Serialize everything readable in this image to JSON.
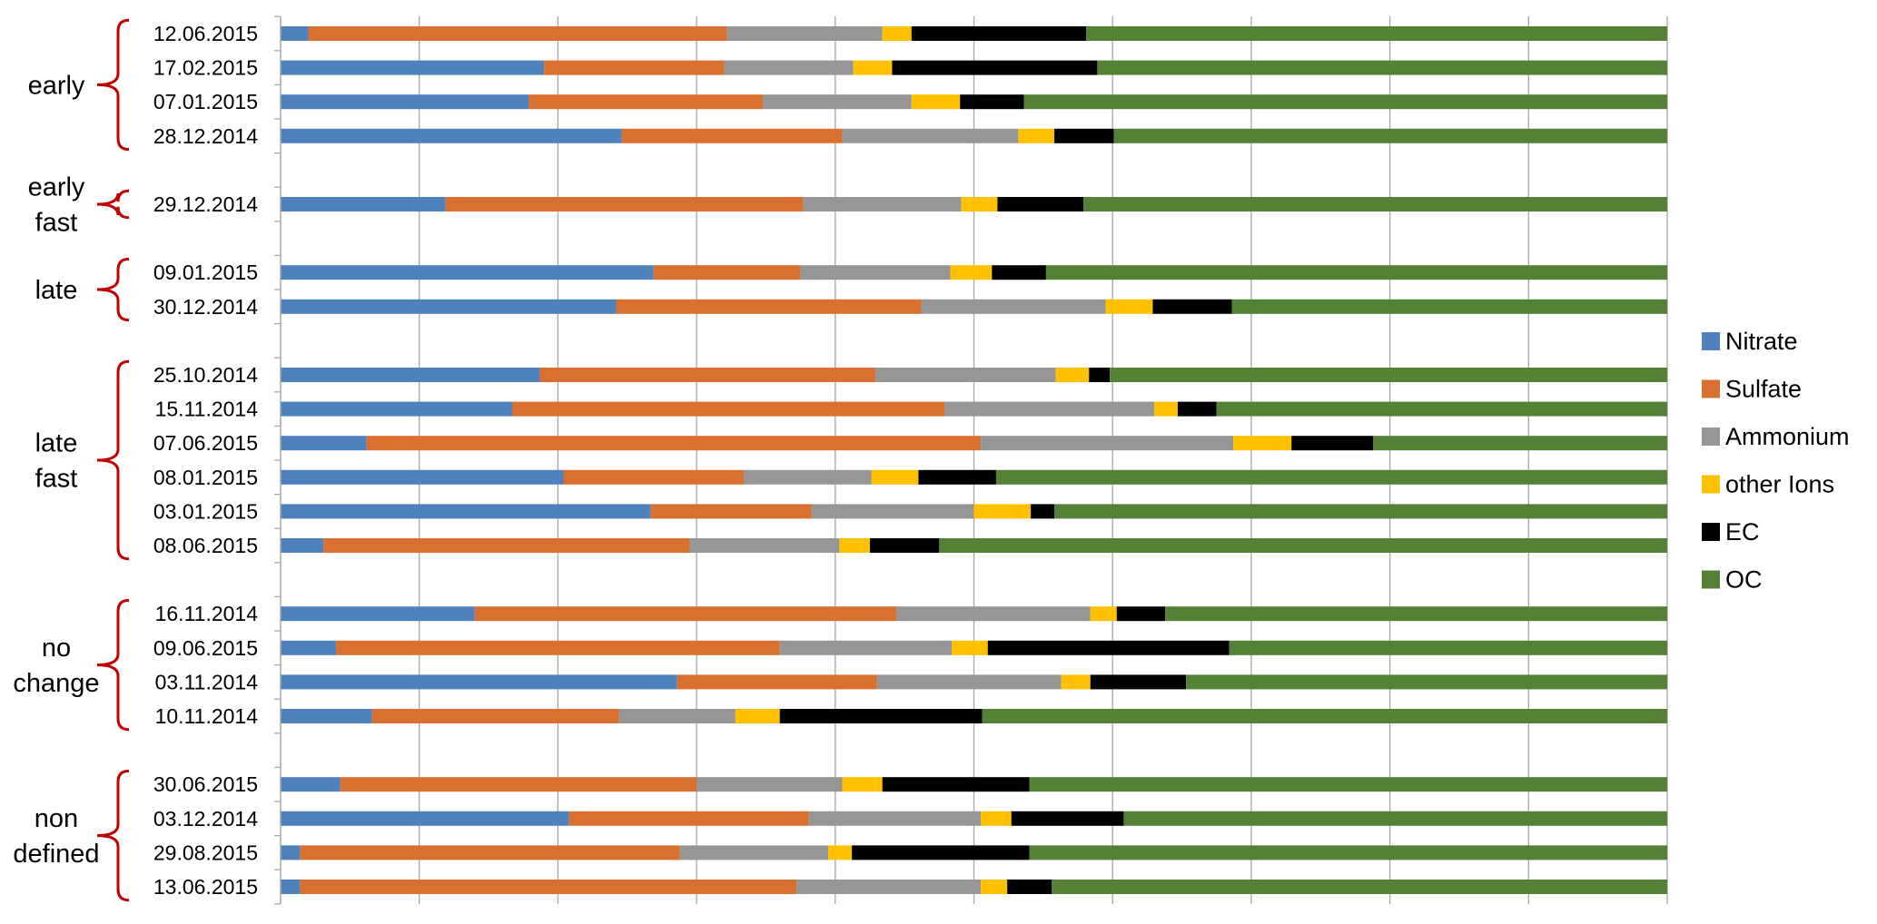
{
  "chart_data": {
    "type": "bar",
    "orientation": "horizontal",
    "stacked": "100%",
    "xlim": [
      0,
      100
    ],
    "grid": true,
    "legend_position": "right",
    "colors": {
      "Nitrate": "#4f81bd",
      "Sulfate": "#d97030",
      "Ammonium": "#969696",
      "other Ions": "#ffc000",
      "EC": "#000000",
      "OC": "#538135"
    },
    "series_names": [
      "Nitrate",
      "Sulfate",
      "Ammonium",
      "other Ions",
      "EC",
      "OC"
    ],
    "groups": [
      {
        "label": [
          "early"
        ],
        "rows": [
          0,
          3
        ]
      },
      {
        "label": [
          "early",
          "fast"
        ],
        "rows": [
          5,
          5
        ]
      },
      {
        "label": [
          "late"
        ],
        "rows": [
          7,
          8
        ]
      },
      {
        "label": [
          "late",
          "fast"
        ],
        "rows": [
          10,
          15
        ]
      },
      {
        "label": [
          "no",
          "change"
        ],
        "rows": [
          17,
          20
        ]
      },
      {
        "label": [
          "non",
          "defined"
        ],
        "rows": [
          22,
          25
        ]
      }
    ],
    "rows": [
      {
        "date": "12.06.2015",
        "values": [
          2,
          30.2,
          11.2,
          2.1,
          12.6,
          41.9
        ]
      },
      {
        "date": "17.02.2015",
        "values": [
          19,
          13,
          9.3,
          2.8,
          14.8,
          41.1
        ]
      },
      {
        "date": "07.01.2015",
        "values": [
          17.9,
          16.9,
          10.7,
          3.5,
          4.6,
          46.4
        ]
      },
      {
        "date": "28.12.2014",
        "values": [
          24.6,
          15.9,
          12.7,
          2.6,
          4.3,
          39.9
        ]
      },
      {
        "date": "",
        "values": []
      },
      {
        "date": "29.12.2014",
        "values": [
          11.9,
          25.8,
          11.4,
          2.6,
          6.2,
          42.1
        ]
      },
      {
        "date": "",
        "values": []
      },
      {
        "date": "09.01.2015",
        "values": [
          26.9,
          10.6,
          10.8,
          3,
          3.9,
          44.8
        ]
      },
      {
        "date": "30.12.2014",
        "values": [
          24.2,
          22,
          13.3,
          3.4,
          5.7,
          31.4
        ]
      },
      {
        "date": "",
        "values": []
      },
      {
        "date": "25.10.2014",
        "values": [
          18.7,
          24.2,
          13,
          2.4,
          1.5,
          40.2
        ]
      },
      {
        "date": "15.11.2014",
        "values": [
          16.7,
          31.2,
          15.1,
          1.7,
          2.8,
          32.5
        ]
      },
      {
        "date": "07.06.2015",
        "values": [
          6.2,
          44.3,
          18.2,
          4.2,
          5.9,
          21.2
        ]
      },
      {
        "date": "08.01.2015",
        "values": [
          20.4,
          13,
          9.2,
          3.4,
          5.6,
          48.4
        ]
      },
      {
        "date": "03.01.2015",
        "values": [
          26.7,
          11.6,
          11.7,
          4.1,
          1.7,
          44.2
        ]
      },
      {
        "date": "08.06.2015",
        "values": [
          3.1,
          26.4,
          10.8,
          2.2,
          5,
          52.5
        ]
      },
      {
        "date": "",
        "values": []
      },
      {
        "date": "16.11.2014",
        "values": [
          14,
          30.4,
          14,
          1.9,
          3.5,
          36.2
        ]
      },
      {
        "date": "09.06.2015",
        "values": [
          4,
          32,
          12.4,
          2.6,
          17.4,
          31.6
        ]
      },
      {
        "date": "03.11.2014",
        "values": [
          28.6,
          14.4,
          13.3,
          2.1,
          6.9,
          34.7
        ]
      },
      {
        "date": "10.11.2014",
        "values": [
          6.6,
          17.8,
          8.4,
          3.2,
          14.6,
          49.4
        ]
      },
      {
        "date": "",
        "values": []
      },
      {
        "date": "30.06.2015",
        "values": [
          4.3,
          25.7,
          10.5,
          2.9,
          10.6,
          46
        ]
      },
      {
        "date": "03.12.2014",
        "values": [
          20.8,
          17.3,
          12.4,
          2.2,
          8.1,
          39.2
        ]
      },
      {
        "date": "29.08.2015",
        "values": [
          1.4,
          27.4,
          10.7,
          1.7,
          12.8,
          46
        ]
      },
      {
        "date": "13.06.2015",
        "values": [
          1.4,
          35.8,
          13.3,
          1.9,
          3.2,
          44.4
        ]
      }
    ]
  }
}
